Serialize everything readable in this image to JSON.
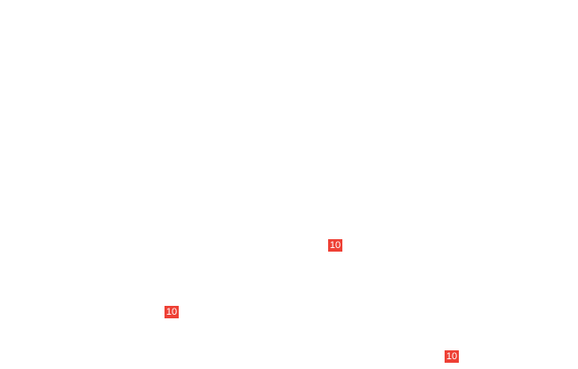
{
  "accent_color": "#ee4035",
  "badges": [
    {
      "label": "10"
    },
    {
      "label": "10"
    },
    {
      "label": "10"
    }
  ]
}
